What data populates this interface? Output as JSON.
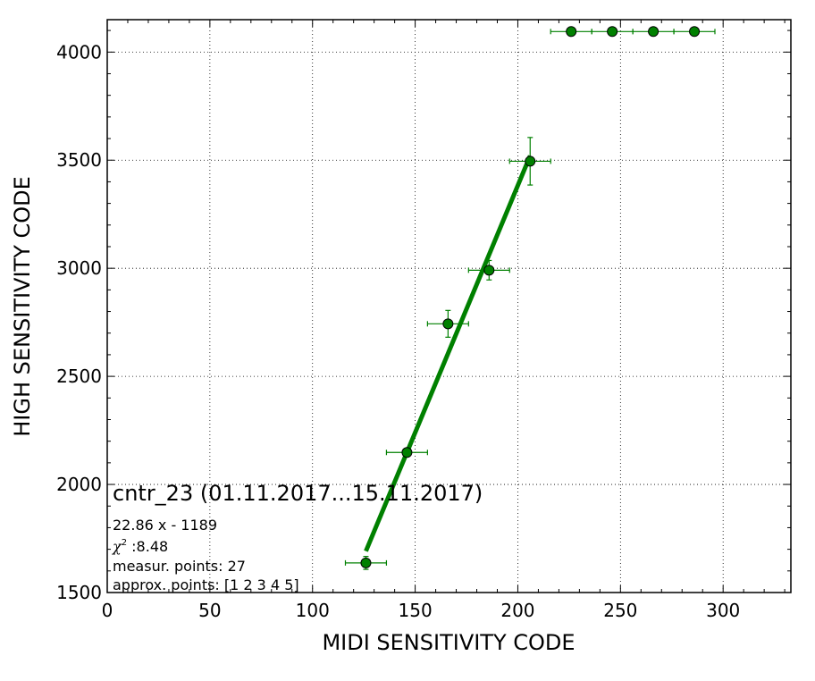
{
  "chart_data": {
    "type": "scatter",
    "title": "",
    "xlabel": "MIDI SENSITIVITY CODE",
    "ylabel": "HIGH SENSITIVITY CODE",
    "xlim": [
      0,
      333
    ],
    "ylim": [
      1500,
      4150
    ],
    "grid": true,
    "x_ticks": [
      0,
      50,
      100,
      150,
      200,
      250,
      300
    ],
    "y_ticks": [
      1500,
      2000,
      2500,
      3000,
      3500,
      4000
    ],
    "colors": {
      "series": "#008000",
      "edge": "#000000",
      "errorbar": "#008000",
      "fit": "#008000"
    },
    "series": [
      {
        "points": [
          {
            "x": 126,
            "y": 1637,
            "xerr": 10,
            "yerr": 30
          },
          {
            "x": 146,
            "y": 2148,
            "xerr": 10,
            "yerr": 8
          },
          {
            "x": 166,
            "y": 2743,
            "xerr": 10,
            "yerr": 62
          },
          {
            "x": 186,
            "y": 2991,
            "xerr": 10,
            "yerr": 45
          },
          {
            "x": 206,
            "y": 3495,
            "xerr": 10,
            "yerr": 110
          },
          {
            "x": 226,
            "y": 4095,
            "xerr": 10,
            "yerr": 0
          },
          {
            "x": 246,
            "y": 4095,
            "xerr": 10,
            "yerr": 0
          },
          {
            "x": 266,
            "y": 4095,
            "xerr": 10,
            "yerr": 0
          },
          {
            "x": 286,
            "y": 4095,
            "xerr": 10,
            "yerr": 0
          }
        ]
      }
    ],
    "fit_line": {
      "slope": 22.86,
      "intercept": -1189,
      "x_range": [
        126,
        206
      ]
    },
    "annotations": {
      "title": "cntr_23 (01.11.2017...15.11.2017)",
      "equation": "22.86 x - 1189",
      "chi2_symbol": "χ",
      "chi2_sup": "2",
      "chi2_value": " :8.48",
      "measured": "measur. points: 27",
      "approx": "approx. points: [1 2 3 4 5]"
    }
  }
}
